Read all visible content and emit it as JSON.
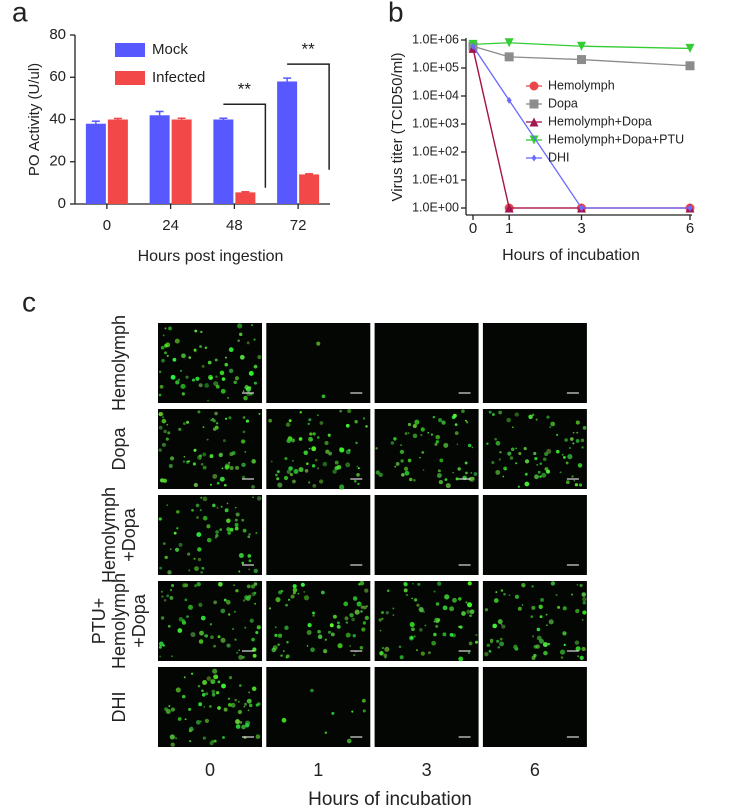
{
  "panel_labels": [
    "a",
    "b",
    "c"
  ],
  "chart_data": [
    {
      "type": "bar",
      "ylabel": "PO Activity (U/ul)",
      "xlabel": "Hours post ingestion",
      "categories": [
        "0",
        "24",
        "48",
        "72"
      ],
      "series": [
        {
          "name": "Mock",
          "color": "#5858ff",
          "values": [
            38,
            42,
            40,
            58
          ],
          "errors": [
            1.2,
            1.8,
            0.6,
            1.6
          ]
        },
        {
          "name": "Infected",
          "color": "#f24848",
          "values": [
            40,
            40,
            5.5,
            14
          ],
          "errors": [
            0.5,
            0.6,
            0.3,
            0.3
          ]
        }
      ],
      "ylim": [
        0,
        80
      ],
      "yticks": [
        0,
        20,
        40,
        60,
        80
      ],
      "legend": "upper left",
      "annotations": [
        "**",
        "**"
      ]
    },
    {
      "type": "line",
      "ylabel": "Virus titer (TCID50/ml)",
      "xlabel": "Hours of incubation",
      "yscale": "log",
      "x": [
        0,
        1,
        3,
        6
      ],
      "xlim": [
        0,
        6
      ],
      "xticks": [
        0,
        1,
        3,
        6
      ],
      "ylim": [
        1,
        1000000
      ],
      "yticks": [
        {
          "value": 1,
          "label": "1.0E+00"
        },
        {
          "value": 10,
          "label": "1.0E+01"
        },
        {
          "value": 100,
          "label": "1.0E+02"
        },
        {
          "value": 1000,
          "label": "1.0E+03"
        },
        {
          "value": 10000,
          "label": "1.0E+04"
        },
        {
          "value": 100000,
          "label": "1.0E+05"
        },
        {
          "value": 1000000,
          "label": "1.0E+06"
        }
      ],
      "legend": "center right",
      "series": [
        {
          "name": "Hemolymph",
          "color": "#e8474b",
          "marker": "circle",
          "values": [
            500000,
            1,
            1,
            1
          ]
        },
        {
          "name": "Dopa",
          "color": "#8c8c8c",
          "marker": "square",
          "values": [
            600000,
            250000,
            200000,
            120000
          ]
        },
        {
          "name": "Hemolymph+Dopa",
          "color": "#a3154f",
          "marker": "triangle",
          "values": [
            500000,
            1,
            1,
            1
          ]
        },
        {
          "name": "Hemolymph+Dopa+PTU",
          "color": "#33cc33",
          "marker": "triangle-down",
          "values": [
            700000,
            800000,
            600000,
            500000
          ]
        },
        {
          "name": "DHI",
          "color": "#6a6aff",
          "marker": "diamond",
          "values": [
            600000,
            7000,
            1,
            1
          ]
        }
      ]
    }
  ],
  "image_grid": {
    "rows": [
      [
        "Hemolymph"
      ],
      [
        "Dopa"
      ],
      [
        "Hemolymph",
        "+Dopa"
      ],
      [
        "PTU+",
        "Hemolymph",
        "+Dopa"
      ],
      [
        "DHI"
      ]
    ],
    "columns": [
      "0",
      "1",
      "3",
      "6"
    ],
    "xlabel": "Hours of incubation"
  }
}
